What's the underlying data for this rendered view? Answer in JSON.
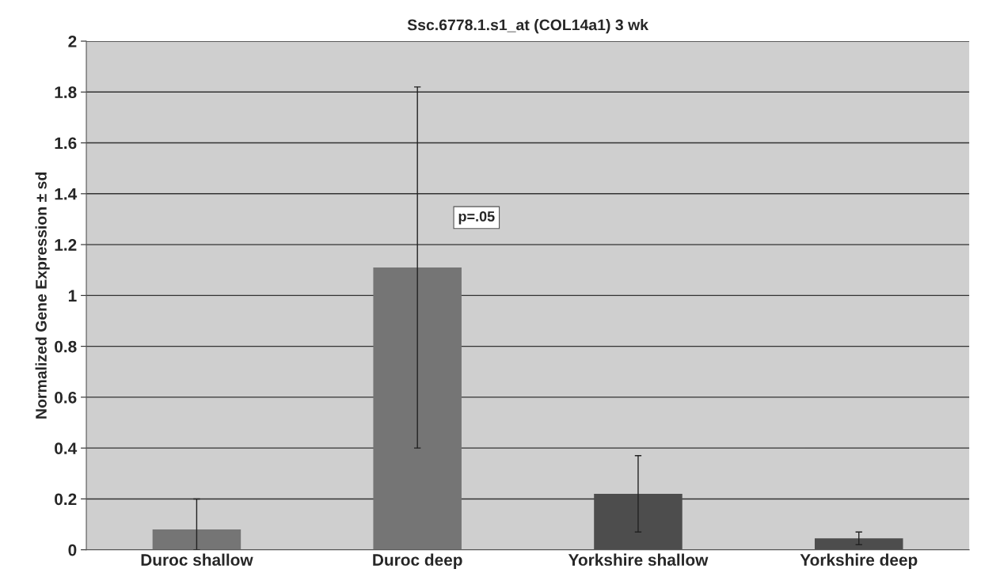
{
  "chart_data": {
    "type": "bar",
    "title": "Ssc.6778.1.s1_at (COL14a1) 3 wk",
    "ylabel": "Normalized Gene Expression ± sd",
    "categories": [
      "Duroc shallow",
      "Duroc deep",
      "Yorkshire shallow",
      "Yorkshire deep"
    ],
    "values": [
      0.08,
      1.11,
      0.22,
      0.045
    ],
    "errors": [
      [
        0,
        0.2
      ],
      0.71,
      0.15,
      0.025
    ],
    "colors": [
      "#757575",
      "#757575",
      "#4d4d4d",
      "#4d4d4d"
    ],
    "ylim": [
      0,
      2
    ],
    "yticks": [
      0,
      0.2,
      0.4,
      0.6,
      0.8,
      1,
      1.2,
      1.4,
      1.6,
      1.8,
      2
    ],
    "grid": "y",
    "legend": false,
    "annotations": [
      "p=.05"
    ]
  }
}
